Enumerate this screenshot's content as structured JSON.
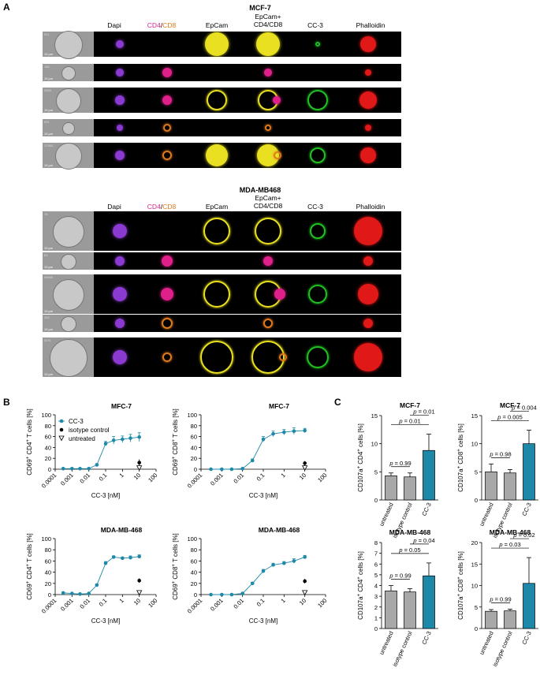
{
  "panel_labels": {
    "a": "A",
    "b": "B",
    "c": "C"
  },
  "imaging": {
    "groups": [
      {
        "title": "MCF-7",
        "row_ids": [
          "511",
          "186",
          "3059",
          "651",
          "17363"
        ]
      },
      {
        "title": "MDA-MB468",
        "row_ids": [
          "76",
          "63",
          "45445",
          "264",
          "5471"
        ]
      }
    ],
    "channels": {
      "dapi": "Dapi",
      "cd4": "CD4",
      "slash": "/",
      "cd8": "CD8",
      "epcam": "EpCam",
      "merge_line1": "EpCam+",
      "merge_line2": "CD4/CD8",
      "cc3": "CC-3",
      "phalloidin": "Phalloidin"
    },
    "scale_bar": "10 µm",
    "colors": {
      "dapi": "#8a3ad0",
      "cd4": "#e0208a",
      "cd8": "#e07a1a",
      "epcam": "#e8e020",
      "cc3": "#20c020",
      "phalloidin": "#e01818"
    }
  },
  "chart_data": [
    {
      "id": "b1",
      "type": "scatter",
      "title": "MFC-7",
      "ylabel": "CD69+ CD4+ T cells [%]",
      "xlabel": "CC-3 [nM]",
      "xscale": "log",
      "xlim": [
        0.0001,
        100
      ],
      "ylim": [
        0,
        100
      ],
      "yticks": [
        "0",
        "20",
        "40",
        "60",
        "80",
        "100"
      ],
      "xticks": [
        "0.0001",
        "0.001",
        "0.01",
        "0.1",
        "1",
        "10",
        "100"
      ],
      "legend": [
        "CC-3",
        "isotype control",
        "untreated"
      ],
      "series": [
        {
          "name": "CC-3",
          "x": [
            0.0003,
            0.001,
            0.003,
            0.01,
            0.03,
            0.1,
            0.3,
            1,
            3,
            10
          ],
          "y": [
            1,
            1,
            1,
            1,
            8,
            47,
            53,
            55,
            57,
            59
          ],
          "err": [
            0,
            0,
            0,
            0,
            2,
            4,
            7,
            6,
            7,
            8
          ]
        },
        {
          "name": "isotype control",
          "x": [
            10
          ],
          "y": [
            12
          ],
          "err": [
            6
          ]
        },
        {
          "name": "untreated",
          "x": [
            10
          ],
          "y": [
            2
          ],
          "err": [
            0
          ]
        }
      ]
    },
    {
      "id": "b2",
      "type": "scatter",
      "title": "MFC-7",
      "ylabel": "CD69+ CD8+ T cells [%]",
      "xlabel": "CC-3 [nM]",
      "xscale": "log",
      "xlim": [
        0.0001,
        100
      ],
      "ylim": [
        0,
        100
      ],
      "yticks": [
        "0",
        "20",
        "40",
        "60",
        "80",
        "100"
      ],
      "xticks": [
        "0.0001",
        "0.001",
        "0.01",
        "0.1",
        "1",
        "10",
        "100"
      ],
      "series": [
        {
          "name": "CC-3",
          "x": [
            0.0003,
            0.001,
            0.003,
            0.01,
            0.03,
            0.1,
            0.3,
            1,
            3,
            10
          ],
          "y": [
            0,
            0,
            0,
            1,
            16,
            55,
            65,
            68,
            70,
            71
          ],
          "err": [
            0,
            0,
            0,
            0,
            3,
            5,
            5,
            5,
            6,
            4
          ]
        },
        {
          "name": "isotype control",
          "x": [
            10
          ],
          "y": [
            11
          ],
          "err": [
            4
          ]
        },
        {
          "name": "untreated",
          "x": [
            10
          ],
          "y": [
            2
          ],
          "err": [
            0
          ]
        }
      ]
    },
    {
      "id": "b3",
      "type": "scatter",
      "title": "MDA-MB-468",
      "ylabel": "CD69+ CD4+ T cells [%]",
      "xlabel": "CC-3 [nM]",
      "xscale": "log",
      "xlim": [
        0.0001,
        100
      ],
      "ylim": [
        0,
        100
      ],
      "yticks": [
        "0",
        "20",
        "40",
        "60",
        "80",
        "100"
      ],
      "xticks": [
        "0.0001",
        "0.001",
        "0.01",
        "0.1",
        "1",
        "10",
        "100"
      ],
      "series": [
        {
          "name": "CC-3",
          "x": [
            0.0003,
            0.001,
            0.003,
            0.01,
            0.03,
            0.1,
            0.3,
            1,
            3,
            10
          ],
          "y": [
            3,
            2,
            1,
            2,
            17,
            56,
            67,
            65,
            66,
            68
          ],
          "err": [
            0,
            0,
            0,
            0,
            2,
            3,
            2,
            2,
            3,
            3
          ]
        },
        {
          "name": "isotype control",
          "x": [
            10
          ],
          "y": [
            25
          ],
          "err": [
            4
          ]
        },
        {
          "name": "untreated",
          "x": [
            10
          ],
          "y": [
            3
          ],
          "err": [
            0
          ]
        }
      ]
    },
    {
      "id": "b4",
      "type": "scatter",
      "title": "MDA-MB-468",
      "ylabel": "CD69+ CD8+ T cells [%]",
      "xlabel": "CC-3 [nM]",
      "xscale": "log",
      "xlim": [
        0.0001,
        100
      ],
      "ylim": [
        0,
        100
      ],
      "yticks": [
        "0",
        "20",
        "40",
        "60",
        "80",
        "100"
      ],
      "xticks": [
        "0.0001",
        "0.001",
        "0.01",
        "0.1",
        "1",
        "10",
        "100"
      ],
      "series": [
        {
          "name": "CC-3",
          "x": [
            0.0003,
            0.001,
            0.003,
            0.01,
            0.03,
            0.1,
            0.3,
            1,
            3,
            10
          ],
          "y": [
            0,
            0,
            0,
            2,
            20,
            42,
            53,
            56,
            60,
            67
          ],
          "err": [
            0,
            0,
            0,
            0,
            2,
            3,
            3,
            3,
            4,
            3
          ]
        },
        {
          "name": "isotype control",
          "x": [
            10
          ],
          "y": [
            24
          ],
          "err": [
            4
          ]
        },
        {
          "name": "untreated",
          "x": [
            10
          ],
          "y": [
            3
          ],
          "err": [
            0
          ]
        }
      ]
    },
    {
      "id": "c1",
      "type": "bar",
      "title": "MCF-7",
      "ylabel": "CD107a+ CD4+ cells [%]",
      "categories": [
        "untreated",
        "isotype control",
        "CC-3"
      ],
      "values": [
        4.3,
        4.1,
        8.8
      ],
      "err": [
        0.5,
        0.7,
        2.9
      ],
      "ylim": [
        0,
        15
      ],
      "yticks": [
        "0",
        "5",
        "10",
        "15"
      ],
      "annotations": [
        "p = 0.99",
        "p = 0.01",
        "p = 0.01"
      ]
    },
    {
      "id": "c2",
      "type": "bar",
      "title": "MCF-7",
      "ylabel": "CD107a+ CD8+ cells [%]",
      "categories": [
        "untreated",
        "isotype control",
        "CC-3"
      ],
      "values": [
        5.0,
        4.8,
        10.0
      ],
      "err": [
        1.4,
        0.6,
        2.4
      ],
      "ylim": [
        0,
        15
      ],
      "yticks": [
        "0",
        "5",
        "10",
        "15"
      ],
      "annotations": [
        "p = 0.98",
        "p = 0.005",
        "p = 0.004"
      ]
    },
    {
      "id": "c3",
      "type": "bar",
      "title": "MDA-MB-468",
      "ylabel": "CD107a+ CD4+ cells [%]",
      "categories": [
        "untreated",
        "isotype control",
        "CC-3"
      ],
      "values": [
        3.5,
        3.4,
        4.9
      ],
      "err": [
        0.5,
        0.3,
        1.2
      ],
      "ylim": [
        0,
        8
      ],
      "yticks": [
        "0",
        "1",
        "2",
        "3",
        "4",
        "5",
        "6",
        "7",
        "8"
      ],
      "annotations": [
        "p = 0.99",
        "p = 0.05",
        "p = 0.04"
      ]
    },
    {
      "id": "c4",
      "type": "bar",
      "title": "MDA-MB-468",
      "ylabel": "CD107a+ CD8+ cells [%]",
      "categories": [
        "untreated",
        "isotype control",
        "CC-3"
      ],
      "values": [
        4.0,
        4.1,
        10.5
      ],
      "err": [
        0.4,
        0.4,
        6.0
      ],
      "ylim": [
        0,
        20
      ],
      "yticks": [
        "0",
        "5",
        "10",
        "15",
        "20"
      ],
      "annotations": [
        "p = 0.99",
        "p = 0.03",
        "p = 0.02"
      ]
    }
  ]
}
